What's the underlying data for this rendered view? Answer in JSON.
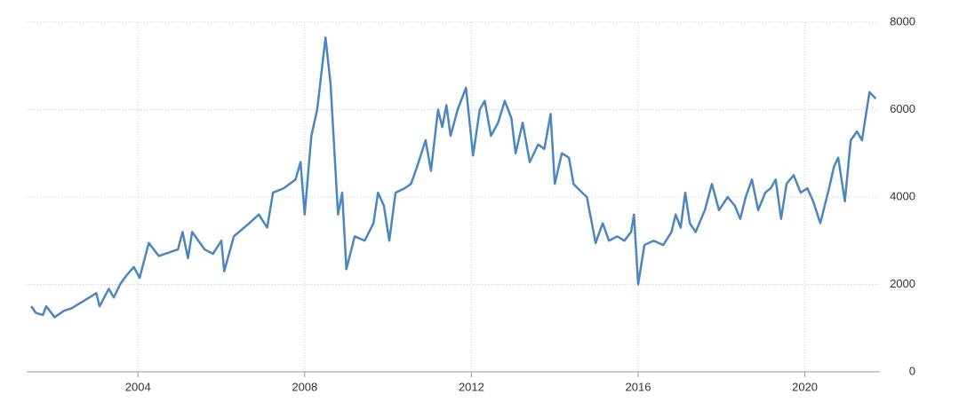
{
  "chart_data": {
    "type": "line",
    "x": [
      2001.44,
      2001.55,
      2001.72,
      2001.8,
      2002.0,
      2002.23,
      2002.4,
      2002.66,
      2002.83,
      2003.0,
      2003.08,
      2003.3,
      2003.42,
      2003.57,
      2003.72,
      2003.9,
      2004.04,
      2004.26,
      2004.5,
      2004.96,
      2005.07,
      2005.2,
      2005.3,
      2005.6,
      2005.8,
      2006.0,
      2006.07,
      2006.3,
      2006.67,
      2006.9,
      2007.1,
      2007.24,
      2007.5,
      2007.78,
      2007.9,
      2008.0,
      2008.16,
      2008.3,
      2008.5,
      2008.62,
      2008.8,
      2008.9,
      2009.0,
      2009.2,
      2009.44,
      2009.65,
      2009.76,
      2009.9,
      2010.03,
      2010.18,
      2010.4,
      2010.55,
      2010.7,
      2010.9,
      2011.03,
      2011.2,
      2011.3,
      2011.4,
      2011.5,
      2011.67,
      2011.87,
      2012.04,
      2012.2,
      2012.32,
      2012.47,
      2012.64,
      2012.8,
      2012.96,
      2013.06,
      2013.23,
      2013.4,
      2013.6,
      2013.75,
      2013.9,
      2014.0,
      2014.17,
      2014.34,
      2014.45,
      2014.55,
      2014.77,
      2014.98,
      2015.15,
      2015.3,
      2015.5,
      2015.67,
      2015.83,
      2015.9,
      2016.0,
      2016.15,
      2016.37,
      2016.6,
      2016.8,
      2016.9,
      2017.02,
      2017.13,
      2017.24,
      2017.38,
      2017.6,
      2017.77,
      2017.94,
      2018.15,
      2018.32,
      2018.45,
      2018.58,
      2018.73,
      2018.88,
      2019.05,
      2019.18,
      2019.3,
      2019.43,
      2019.56,
      2019.73,
      2019.9,
      2020.06,
      2020.2,
      2020.37,
      2020.58,
      2020.7,
      2020.8,
      2020.96,
      2021.1,
      2021.25,
      2021.37,
      2021.55,
      2021.7
    ],
    "series": [
      {
        "color": "#4a86bf",
        "values": [
          1500,
          1350,
          1300,
          1500,
          1250,
          1400,
          1450,
          1600,
          1700,
          1800,
          1500,
          1900,
          1700,
          2000,
          2200,
          2400,
          2150,
          2950,
          2650,
          2800,
          3200,
          2600,
          3200,
          2800,
          2700,
          3000,
          2300,
          3100,
          3400,
          3600,
          3300,
          4100,
          4200,
          4400,
          4800,
          3600,
          5400,
          6000,
          7650,
          6600,
          3600,
          4100,
          2350,
          3100,
          3000,
          3400,
          4100,
          3800,
          3000,
          4100,
          4200,
          4300,
          4700,
          5300,
          4600,
          6000,
          5600,
          6100,
          5400,
          6000,
          6500,
          4950,
          6000,
          6200,
          5400,
          5700,
          6200,
          5800,
          5000,
          5700,
          4800,
          5200,
          5100,
          5900,
          4300,
          5000,
          4900,
          4300,
          4200,
          4000,
          2950,
          3400,
          3000,
          3100,
          3000,
          3200,
          3600,
          2000,
          2900,
          3000,
          2900,
          3200,
          3600,
          3300,
          4100,
          3400,
          3200,
          3700,
          4300,
          3700,
          4000,
          3800,
          3500,
          4000,
          4400,
          3700,
          4100,
          4200,
          4400,
          3500,
          4300,
          4500,
          4100,
          4200,
          3900,
          3400,
          4200,
          4700,
          4900,
          3900,
          5300,
          5500,
          5300,
          6400,
          6250
        ]
      }
    ],
    "xlim": [
      2001.33,
      2021.8
    ],
    "xticks": [
      2004,
      2008,
      2012,
      2016,
      2020
    ],
    "ylim": [
      0,
      8000
    ],
    "yticks": [
      0,
      2000,
      4000,
      6000,
      8000
    ],
    "grid": true
  }
}
